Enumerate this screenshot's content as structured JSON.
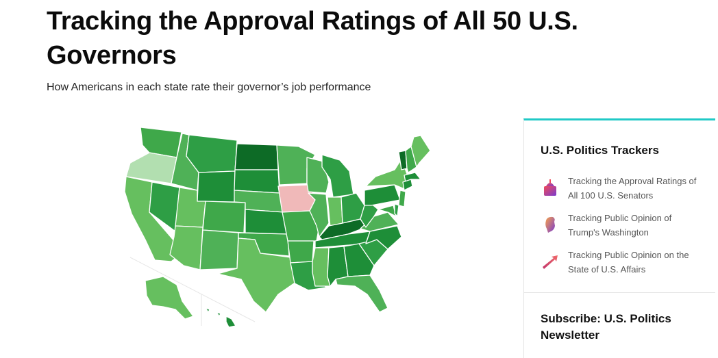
{
  "page": {
    "title": "Tracking the Approval Ratings of All 50 U.S. Governors",
    "subtitle": "How Americans in each state rate their governor’s job performance"
  },
  "map": {
    "legend_colors": {
      "light_green": "#b2dfb0",
      "mid_green": "#66bf5f",
      "green": "#3fa84a",
      "dark_green": "#1e8e38",
      "darkest_green": "#0d6b26",
      "pink": "#f0b9b9"
    },
    "states": [
      {
        "id": "WA",
        "color": "#3fa84a"
      },
      {
        "id": "OR",
        "color": "#b2dfb0"
      },
      {
        "id": "CA",
        "color": "#66bf5f"
      },
      {
        "id": "ID",
        "color": "#4fb157"
      },
      {
        "id": "NV",
        "color": "#2e9e45"
      },
      {
        "id": "MT",
        "color": "#2e9e45"
      },
      {
        "id": "WY",
        "color": "#1e8e38"
      },
      {
        "id": "UT",
        "color": "#66bf5f"
      },
      {
        "id": "AZ",
        "color": "#66bf5f"
      },
      {
        "id": "CO",
        "color": "#3fa84a"
      },
      {
        "id": "NM",
        "color": "#4fb157"
      },
      {
        "id": "ND",
        "color": "#0d6b26"
      },
      {
        "id": "SD",
        "color": "#1e8e38"
      },
      {
        "id": "NE",
        "color": "#4fb157"
      },
      {
        "id": "KS",
        "color": "#1e8e38"
      },
      {
        "id": "OK",
        "color": "#3fa84a"
      },
      {
        "id": "TX",
        "color": "#66bf5f"
      },
      {
        "id": "MN",
        "color": "#4fb157"
      },
      {
        "id": "IA",
        "color": "#f0b9b9"
      },
      {
        "id": "MO",
        "color": "#3fa84a"
      },
      {
        "id": "AR",
        "color": "#3fa84a"
      },
      {
        "id": "LA",
        "color": "#2e9e45"
      },
      {
        "id": "WI",
        "color": "#4fb157"
      },
      {
        "id": "IL",
        "color": "#4fb157"
      },
      {
        "id": "MI",
        "color": "#2e9e45"
      },
      {
        "id": "IN",
        "color": "#66bf5f"
      },
      {
        "id": "OH",
        "color": "#2e9e45"
      },
      {
        "id": "KY",
        "color": "#0d6b26"
      },
      {
        "id": "TN",
        "color": "#1e8e38"
      },
      {
        "id": "MS",
        "color": "#66bf5f"
      },
      {
        "id": "AL",
        "color": "#1e8e38"
      },
      {
        "id": "GA",
        "color": "#1e8e38"
      },
      {
        "id": "FL",
        "color": "#4fb157"
      },
      {
        "id": "SC",
        "color": "#2e9e45"
      },
      {
        "id": "NC",
        "color": "#1e8e38"
      },
      {
        "id": "VA",
        "color": "#4fb157"
      },
      {
        "id": "WV",
        "color": "#2e9e45"
      },
      {
        "id": "PA",
        "color": "#1e8e38"
      },
      {
        "id": "NY",
        "color": "#66bf5f"
      },
      {
        "id": "VT",
        "color": "#0d6b26"
      },
      {
        "id": "NH",
        "color": "#3fa84a"
      },
      {
        "id": "ME",
        "color": "#66bf5f"
      },
      {
        "id": "MA",
        "color": "#1e8e38"
      },
      {
        "id": "CT",
        "color": "#1e8e38"
      },
      {
        "id": "NJ",
        "color": "#3fa84a"
      },
      {
        "id": "MD",
        "color": "#3fa84a"
      },
      {
        "id": "DE",
        "color": "#2e9e45"
      },
      {
        "id": "AK",
        "color": "#66bf5f"
      },
      {
        "id": "HI",
        "color": "#1e8e38"
      }
    ]
  },
  "sidebar": {
    "accent": "#20c9c6",
    "title": "U.S. Politics Trackers",
    "trackers": [
      {
        "label": "Tracking the Approval Ratings of All 100 U.S. Senators",
        "icon": "capitol-icon"
      },
      {
        "label": "Tracking Public Opinion of Trump's Washington",
        "icon": "trump-head-icon"
      },
      {
        "label": "Tracking Public Opinion on the State of U.S. Affairs",
        "icon": "trend-arrow-icon"
      }
    ],
    "subscribe_title": "Subscribe: U.S. Politics Newsletter"
  }
}
